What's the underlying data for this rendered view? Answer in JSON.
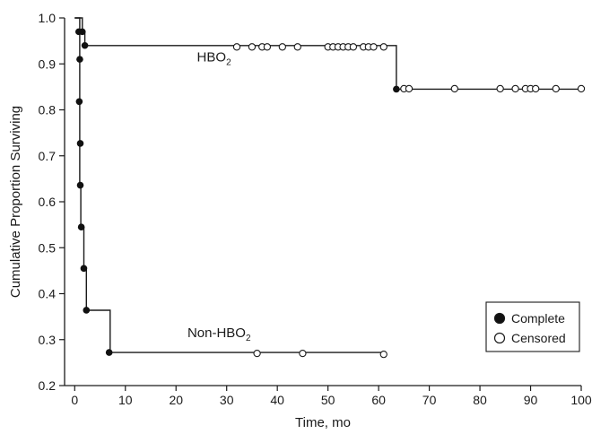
{
  "chart_data": {
    "type": "line",
    "xlabel": "Time, mo",
    "ylabel": "Cumulative Proportion Surviving",
    "xlim": [
      -2,
      100
    ],
    "ylim": [
      0.2,
      1.0
    ],
    "x_ticks": [
      0,
      10,
      20,
      30,
      40,
      50,
      60,
      70,
      80,
      90,
      100
    ],
    "y_ticks": [
      0.2,
      0.3,
      0.4,
      0.5,
      0.6,
      0.7,
      0.8,
      0.9,
      1.0
    ],
    "y_tick_labels": [
      "0.2",
      "0.3",
      "0.4",
      "0.5",
      "0.6",
      "0.7",
      "0.8",
      "0.9",
      "1.0"
    ],
    "series": [
      {
        "name": "HBO",
        "name_subscript": "2",
        "step_points": [
          [
            0,
            1.0
          ],
          [
            1.5,
            1.0
          ],
          [
            1.5,
            0.97
          ],
          [
            2,
            0.97
          ],
          [
            2,
            0.94
          ],
          [
            63.5,
            0.94
          ],
          [
            63.5,
            0.845
          ],
          [
            100,
            0.845
          ]
        ],
        "complete": [
          [
            1.5,
            0.97
          ],
          [
            2,
            0.94
          ],
          [
            63.5,
            0.845
          ]
        ],
        "censored": [
          [
            32,
            0.937
          ],
          [
            35,
            0.937
          ],
          [
            37,
            0.937
          ],
          [
            38,
            0.937
          ],
          [
            41,
            0.937
          ],
          [
            44,
            0.937
          ],
          [
            50,
            0.937
          ],
          [
            51,
            0.937
          ],
          [
            52,
            0.937
          ],
          [
            53,
            0.937
          ],
          [
            54,
            0.937
          ],
          [
            55,
            0.937
          ],
          [
            57,
            0.937
          ],
          [
            58,
            0.937
          ],
          [
            59,
            0.937
          ],
          [
            61,
            0.937
          ],
          [
            65,
            0.846
          ],
          [
            66,
            0.846
          ],
          [
            75,
            0.846
          ],
          [
            84,
            0.846
          ],
          [
            87,
            0.846
          ],
          [
            89,
            0.846
          ],
          [
            90,
            0.846
          ],
          [
            91,
            0.846
          ],
          [
            95,
            0.846
          ],
          [
            100,
            0.846
          ]
        ]
      },
      {
        "name": "Non-HBO",
        "name_subscript": "2",
        "step_points": [
          [
            0,
            1.0
          ],
          [
            1,
            1.0
          ],
          [
            1,
            0.97
          ],
          [
            1,
            0.91
          ],
          [
            1,
            0.818
          ],
          [
            1,
            0.727
          ],
          [
            1,
            0.636
          ],
          [
            1.2,
            0.636
          ],
          [
            1.2,
            0.545
          ],
          [
            1.8,
            0.545
          ],
          [
            1.8,
            0.455
          ],
          [
            2.3,
            0.455
          ],
          [
            2.3,
            0.364
          ],
          [
            7,
            0.364
          ],
          [
            7,
            0.272
          ],
          [
            61,
            0.272
          ]
        ],
        "complete": [
          [
            0.8,
            0.97
          ],
          [
            1,
            0.91
          ],
          [
            0.9,
            0.818
          ],
          [
            1.1,
            0.727
          ],
          [
            1.1,
            0.636
          ],
          [
            1.3,
            0.545
          ],
          [
            1.8,
            0.455
          ],
          [
            2.3,
            0.364
          ],
          [
            6.8,
            0.272
          ]
        ],
        "censored": [
          [
            36,
            0.27
          ],
          [
            45,
            0.27
          ],
          [
            61,
            0.268
          ]
        ]
      }
    ],
    "legend": {
      "placement": "bottom-right",
      "items": [
        {
          "label": "Complete",
          "marker": "filled-circle"
        },
        {
          "label": "Censored",
          "marker": "open-circle"
        }
      ]
    },
    "colors": {
      "line": "#1a1a1a",
      "marker_fill": "#111111",
      "open_fill": "#ffffff"
    }
  }
}
